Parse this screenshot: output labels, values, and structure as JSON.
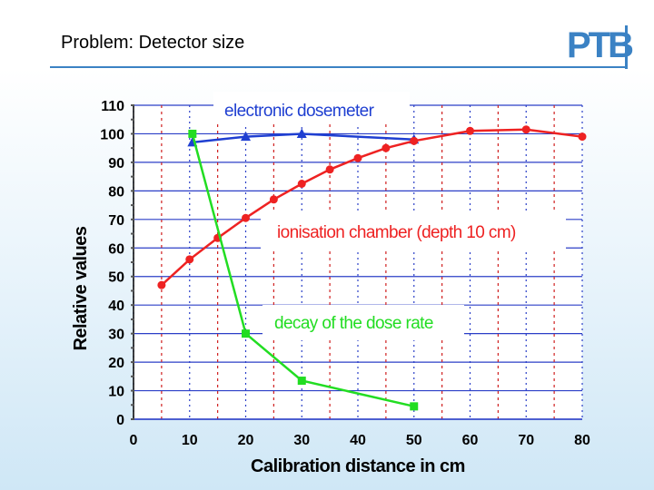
{
  "slide": {
    "title": "Problem: Detector size",
    "logo_text": "PTB"
  },
  "chart_data": {
    "type": "line",
    "xlabel": "Calibration distance in cm",
    "ylabel": "Relative values",
    "xlim": [
      0,
      80
    ],
    "ylim": [
      0,
      110
    ],
    "x_ticks": [
      "0",
      "10",
      "20",
      "30",
      "40",
      "50",
      "60",
      "70",
      "80"
    ],
    "y_ticks": [
      "0",
      "10",
      "20",
      "30",
      "40",
      "50",
      "60",
      "70",
      "80",
      "90",
      "100",
      "110"
    ],
    "grid": true,
    "series": [
      {
        "name": "electronic dosemeter",
        "color": "#1f3fd1",
        "marker": "triangle",
        "x": [
          10.5,
          20,
          30,
          50
        ],
        "y": [
          97,
          99,
          100,
          98
        ]
      },
      {
        "name": "ionisation chamber (depth 10 cm)",
        "color": "#ee2222",
        "marker": "circle",
        "x": [
          5,
          10,
          15,
          20,
          25,
          30,
          35,
          40,
          45,
          50,
          60,
          70,
          80
        ],
        "y": [
          47,
          56,
          63.5,
          70.5,
          77,
          82.5,
          87.5,
          91.5,
          95,
          97.5,
          101,
          101.5,
          99
        ]
      },
      {
        "name": "decay of the dose rate",
        "color": "#22dd22",
        "marker": "square",
        "x": [
          10.5,
          20,
          30,
          50
        ],
        "y": [
          100,
          30,
          13.5,
          4.5
        ]
      }
    ],
    "annotations": [
      "electronic dosemeter",
      "ionisation chamber (depth 10 cm)",
      "decay of the dose rate"
    ]
  }
}
